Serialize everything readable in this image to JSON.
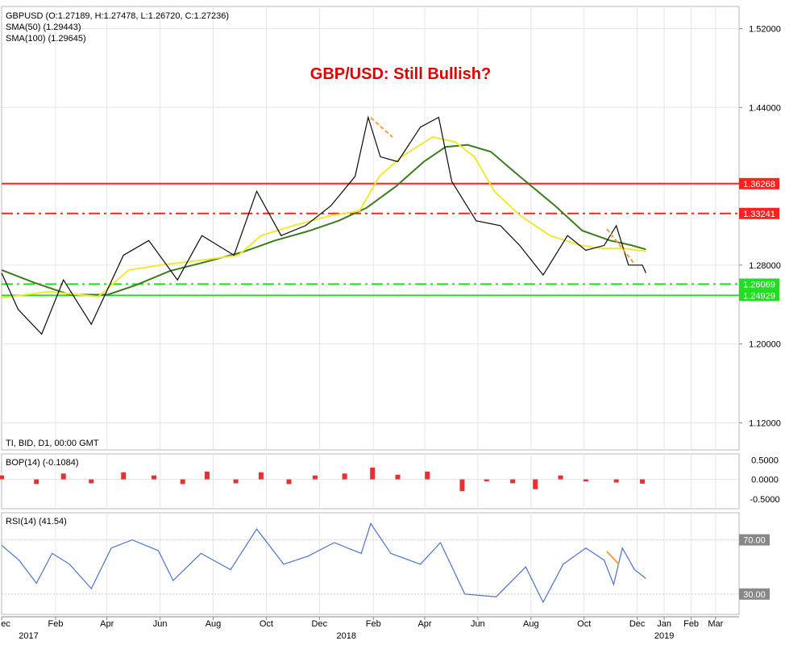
{
  "chart_data": {
    "type": "line",
    "title": "GBP/USD: Still Bullish?",
    "ohlc_header": "GBPUSD (O:1.27189, H:1.27478, L:1.26720, C:1.27236)",
    "sma50_label": "SMA(50) (1.29443)",
    "sma100_label": "SMA(100) (1.29645)",
    "footer_label": "TI, BID, D1, 00:00 GMT",
    "price_axis": {
      "ylim": [
        1.0925,
        1.5425
      ],
      "ticks": [
        "1.52000",
        "1.44000",
        "1.28000",
        "1.20000",
        "1.12000"
      ]
    },
    "levels": [
      {
        "value": 1.36268,
        "label": "1.36268",
        "style": "solid",
        "color": "#ff2020"
      },
      {
        "value": 1.33241,
        "label": "1.33241",
        "style": "dashdot",
        "color": "#ff2020"
      },
      {
        "value": 1.26069,
        "label": "1.26069",
        "style": "dashdot",
        "color": "#22dd22"
      },
      {
        "value": 1.24929,
        "label": "1.24929",
        "style": "solid",
        "color": "#22dd22"
      }
    ],
    "x_axis": {
      "months": [
        "ec",
        "Feb",
        "Apr",
        "Jun",
        "Aug",
        "Oct",
        "Dec",
        "Feb",
        "Apr",
        "Jun",
        "Aug",
        "Oct",
        "Dec",
        "Jan",
        "Feb",
        "Mar"
      ],
      "years": [
        "2017",
        "2018",
        "2019"
      ]
    },
    "price_series": {
      "name": "GBPUSD",
      "x": [
        "2016-12-01",
        "2016-12-20",
        "2017-01-16",
        "2017-02-10",
        "2017-03-14",
        "2017-04-20",
        "2017-05-19",
        "2017-06-21",
        "2017-07-19",
        "2017-08-25",
        "2017-09-20",
        "2017-10-18",
        "2017-11-15",
        "2017-12-14",
        "2018-01-11",
        "2018-01-26",
        "2018-02-09",
        "2018-03-01",
        "2018-03-27",
        "2018-04-17",
        "2018-05-02",
        "2018-05-30",
        "2018-06-27",
        "2018-07-19",
        "2018-08-15",
        "2018-09-12",
        "2018-10-03",
        "2018-10-24",
        "2018-11-07",
        "2018-11-21",
        "2018-12-07",
        "2018-12-11"
      ],
      "close": [
        1.272,
        1.235,
        1.21,
        1.265,
        1.22,
        1.29,
        1.305,
        1.265,
        1.31,
        1.29,
        1.355,
        1.31,
        1.32,
        1.34,
        1.37,
        1.43,
        1.39,
        1.385,
        1.42,
        1.43,
        1.365,
        1.325,
        1.32,
        1.3,
        1.27,
        1.31,
        1.295,
        1.3,
        1.32,
        1.28,
        1.28,
        1.272
      ]
    },
    "sma50": {
      "x": [
        "2016-12-01",
        "2017-01-24",
        "2017-03-22",
        "2017-04-26",
        "2017-06-02",
        "2017-07-18",
        "2017-08-30",
        "2017-09-25",
        "2017-11-01",
        "2017-12-13",
        "2018-01-16",
        "2018-02-08",
        "2018-03-05",
        "2018-04-10",
        "2018-05-06",
        "2018-05-28",
        "2018-06-20",
        "2018-07-20",
        "2018-08-23",
        "2018-09-27",
        "2018-10-23",
        "2018-11-15",
        "2018-12-11"
      ],
      "values": [
        1.247,
        1.253,
        1.248,
        1.275,
        1.28,
        1.285,
        1.29,
        1.31,
        1.32,
        1.33,
        1.335,
        1.37,
        1.39,
        1.41,
        1.405,
        1.39,
        1.355,
        1.33,
        1.31,
        1.3,
        1.297,
        1.297,
        1.294
      ]
    },
    "sma100": {
      "x": [
        "2016-12-01",
        "2017-01-08",
        "2017-02-17",
        "2017-04-02",
        "2017-05-05",
        "2017-06-12",
        "2017-07-22",
        "2017-09-03",
        "2017-10-11",
        "2017-11-20",
        "2017-12-23",
        "2018-01-24",
        "2018-02-27",
        "2018-03-31",
        "2018-04-25",
        "2018-05-20",
        "2018-06-16",
        "2018-07-19",
        "2018-08-29",
        "2018-09-29",
        "2018-10-31",
        "2018-11-25",
        "2018-12-11"
      ],
      "values": [
        1.275,
        1.262,
        1.25,
        1.25,
        1.26,
        1.274,
        1.283,
        1.293,
        1.305,
        1.315,
        1.325,
        1.338,
        1.36,
        1.385,
        1.4,
        1.402,
        1.395,
        1.37,
        1.34,
        1.315,
        1.305,
        1.3,
        1.296
      ]
    },
    "bop": {
      "label": "BOP(14) (-0.1084)",
      "ticks": [
        "0.5000",
        "0.0000",
        "-0.5000"
      ],
      "ylim": [
        -0.75,
        0.65
      ],
      "x": [
        "2016-12-01",
        "2017-01-10",
        "2017-02-10",
        "2017-03-14",
        "2017-04-20",
        "2017-05-25",
        "2017-06-27",
        "2017-07-25",
        "2017-08-27",
        "2017-09-25",
        "2017-10-27",
        "2017-11-26",
        "2017-12-30",
        "2018-01-31",
        "2018-03-01",
        "2018-04-04",
        "2018-05-14",
        "2018-06-11",
        "2018-07-11",
        "2018-08-06",
        "2018-09-04",
        "2018-10-03",
        "2018-11-07",
        "2018-12-07"
      ],
      "values": [
        0.1,
        -0.12,
        0.15,
        -0.1,
        0.18,
        0.1,
        -0.12,
        0.2,
        -0.1,
        0.18,
        -0.12,
        0.1,
        0.15,
        0.3,
        0.12,
        0.2,
        -0.3,
        -0.05,
        -0.1,
        -0.25,
        0.1,
        -0.05,
        -0.08,
        -0.11
      ]
    },
    "rsi": {
      "label": "RSI(14) (41.54)",
      "ticks": [
        "70.00",
        "30.00"
      ],
      "ylim": [
        15,
        90
      ],
      "x": [
        "2016-12-01",
        "2016-12-21",
        "2017-01-10",
        "2017-01-28",
        "2017-02-17",
        "2017-03-14",
        "2017-04-06",
        "2017-04-30",
        "2017-05-30",
        "2017-06-16",
        "2017-07-18",
        "2017-08-21",
        "2017-09-20",
        "2017-10-21",
        "2017-11-18",
        "2017-12-18",
        "2018-01-18",
        "2018-01-29",
        "2018-02-21",
        "2018-03-27",
        "2018-04-19",
        "2018-05-17",
        "2018-06-22",
        "2018-07-26",
        "2018-08-15",
        "2018-09-07",
        "2018-10-03",
        "2018-10-24",
        "2018-11-04",
        "2018-11-14",
        "2018-11-28",
        "2018-12-11"
      ],
      "values": [
        66,
        55,
        38,
        60,
        52,
        34,
        64,
        70,
        62,
        40,
        60,
        48,
        78,
        52,
        58,
        68,
        60,
        82,
        60,
        52,
        68,
        30,
        28,
        50,
        24,
        52,
        64,
        55,
        37,
        64,
        48,
        41.5
      ]
    },
    "grid": true,
    "legend": "top-left"
  }
}
